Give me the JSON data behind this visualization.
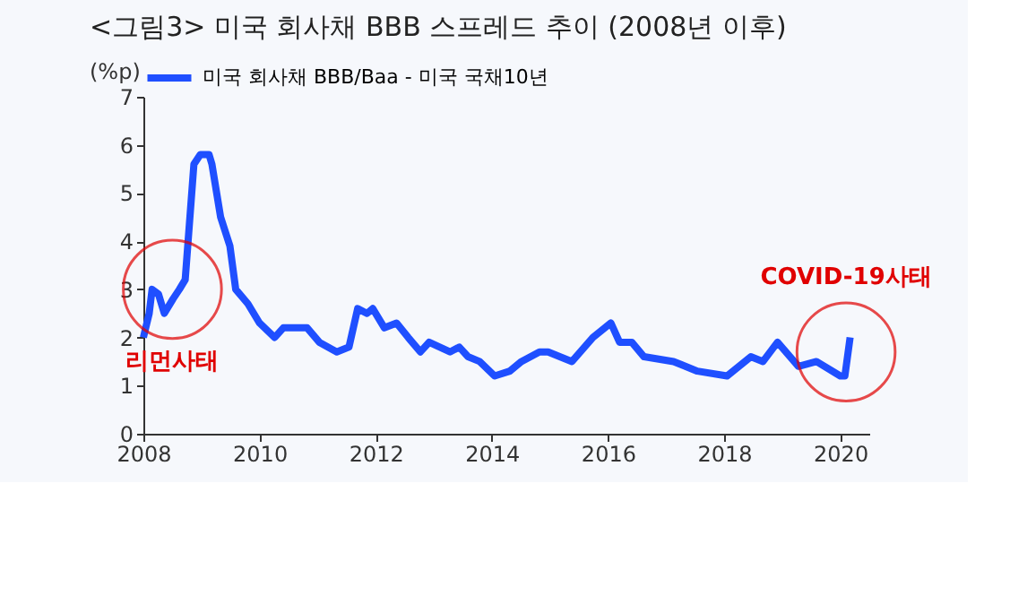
{
  "chart_data": {
    "type": "line",
    "title": "<그림3> 미국 회사채 BBB 스프레드 추이 (2008년 이후)",
    "ylabel": "(%p)",
    "x": [
      2008.0,
      2008.1,
      2008.15,
      2008.26,
      2008.36,
      2008.51,
      2008.62,
      2008.72,
      2008.77,
      2008.87,
      2008.98,
      2009.13,
      2009.18,
      2009.33,
      2009.49,
      2009.59,
      2009.8,
      2010.0,
      2010.26,
      2010.41,
      2010.82,
      2011.03,
      2011.33,
      2011.54,
      2011.69,
      2011.85,
      2011.95,
      2012.15,
      2012.36,
      2012.56,
      2012.77,
      2012.92,
      2013.28,
      2013.44,
      2013.59,
      2013.79,
      2014.05,
      2014.31,
      2014.51,
      2014.82,
      2014.97,
      2015.38,
      2015.74,
      2016.05,
      2016.2,
      2016.41,
      2016.62,
      2017.13,
      2017.54,
      2018.05,
      2018.46,
      2018.67,
      2018.92,
      2019.28,
      2019.59,
      2020.0,
      2020.08,
      2020.17
    ],
    "series": [
      {
        "name": "미국 회사채 BBB/Baa - 미국 국채10년",
        "color": "#1f4fff",
        "values": [
          2.0,
          2.5,
          3.0,
          2.9,
          2.5,
          2.8,
          3.0,
          3.2,
          4.0,
          5.6,
          5.8,
          5.8,
          5.6,
          4.5,
          3.9,
          3.0,
          2.7,
          2.3,
          2.0,
          2.2,
          2.2,
          1.9,
          1.7,
          1.8,
          2.6,
          2.5,
          2.6,
          2.2,
          2.3,
          2.0,
          1.7,
          1.9,
          1.7,
          1.8,
          1.6,
          1.5,
          1.2,
          1.3,
          1.5,
          1.7,
          1.7,
          1.5,
          2.0,
          2.3,
          1.9,
          1.9,
          1.6,
          1.5,
          1.3,
          1.2,
          1.6,
          1.5,
          1.9,
          1.4,
          1.5,
          1.2,
          1.2,
          2.0
        ]
      }
    ],
    "xlim": [
      2008,
      2020.5
    ],
    "xticks": [
      2008,
      2010,
      2012,
      2014,
      2016,
      2018,
      2020
    ],
    "ylim": [
      0,
      7
    ],
    "yticks": [
      0,
      1,
      2,
      3,
      4,
      5,
      6,
      7
    ],
    "legend": "top",
    "grid": false,
    "line_style": "solid",
    "marker": "none",
    "annotations": [
      {
        "text": "리먼사태",
        "x": 2008.5,
        "y": 3.0
      },
      {
        "text": "COVID-19사태",
        "x": 2020.1,
        "y": 1.7
      }
    ]
  }
}
